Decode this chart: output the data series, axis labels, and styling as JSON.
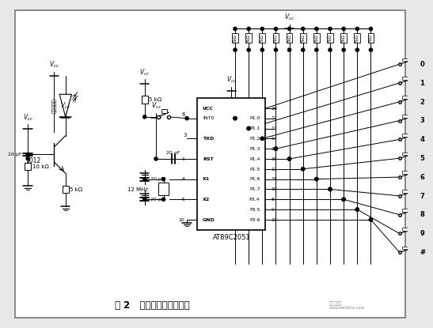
{
  "title": "图 2   发射模块电路原理图",
  "bg_color": "#e8e8e8",
  "chip_label": "AT89C2051",
  "key_labels": [
    "0",
    "1",
    "2",
    "3",
    "4",
    "5",
    "6",
    "7",
    "8",
    "9",
    "#"
  ],
  "crystal_label": "12 MHz",
  "vcc_label": "V_{cc}",
  "pin_nums_right": [
    "20",
    "12",
    "13",
    "14",
    "15",
    "16",
    "17",
    "18",
    "19",
    "8",
    "9",
    "11"
  ],
  "pin_labels_left": [
    "VCC",
    "INT0 P1.0",
    "P1.1",
    "TXD P1.2",
    "P1.3",
    "RST P1.4",
    "P1.5",
    "X1 P1.6",
    "P1.7",
    "X2 P3.4",
    "P3.5",
    "GND P3.6"
  ],
  "pin_labels_inner_left": [
    "VCC",
    "INT0",
    "TXD",
    "RST",
    "X1",
    "X2",
    "GND"
  ],
  "pin_labels_inner_right": [
    "P1.0",
    "P1.1",
    "P1.2",
    "P1.3",
    "P1.4",
    "P1.5",
    "P1.6",
    "P1.7",
    "P3.4",
    "P3.5",
    "P3.6"
  ],
  "watermark_line1": "电子发烧友",
  "watermark_line2": "www.elecfans.com"
}
